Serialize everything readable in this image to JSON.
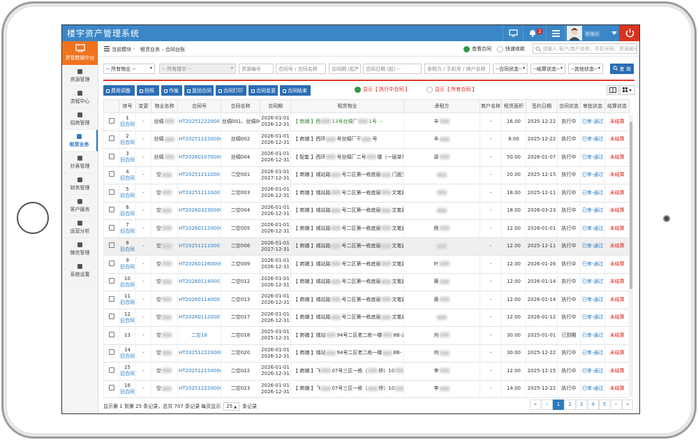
{
  "app": {
    "title": "楼宇资产管理系统",
    "notification_count": "2",
    "user": "管理员"
  },
  "sidebar": {
    "header": "资管数据中台",
    "items": [
      "资源管理",
      "流程中心",
      "招商管理",
      "租赁业务",
      "抄表管理",
      "财务管理",
      "客户服务",
      "运营分析",
      "微信管理",
      "系统设置"
    ]
  },
  "breadcrumb": {
    "label": "当前模块",
    "module": "租赁业务 – 合同台账"
  },
  "view_options": [
    "查看合同",
    "快速收款"
  ],
  "search_placeholder": "请输入 客户/商户名称、手机号码、资源编号",
  "filters": [
    "-- 所有物业 --",
    "-- 所有楼宇 --",
    "资源编号",
    "合同号 / 合同名称",
    "合同期 (起)",
    "合同日期 (起) --",
    "承租方 / 手机号 / 商户名称",
    "--合同状态--",
    "--结算状态--",
    "--其他状态--"
  ],
  "search_button": "查 询",
  "toolbar": [
    "费用调整",
    "拍照",
    "作废",
    "复回合同",
    "合同打印",
    "合同变更",
    "合同结束"
  ],
  "display_options": [
    "显示【 执行中合同 】",
    "显示【 所有合同 】"
  ],
  "table": {
    "columns": [
      "序号",
      "变更",
      "物业名称",
      "合同号",
      "合同名称",
      "合同期",
      "租赁物业",
      "承租方",
      "商户名称",
      "租赁面积",
      "签约日期",
      "合同状态",
      "审批状态",
      "结算状态"
    ],
    "rows": [
      {
        "no": "1",
        "tag": "旧合同",
        "change": "-",
        "property": [
          "丝绸"
        ],
        "contract_no": "HT2025122200010",
        "name": "丝绸001、丝绸003",
        "start": "2026-01-01",
        "end": "2026-12-31",
        "unit": [
          "【 商铺 】西",
          "13号丝绸厂",
          "1号 ···"
        ],
        "tenant": "丰",
        "merchant": "-",
        "area": "16.00",
        "signed": "2025-12-22",
        "status": "执行中",
        "approval": "已审-通过",
        "settlement": "未结算"
      },
      {
        "no": "2",
        "tag": "旧合同",
        "change": "-",
        "property": [
          "丝绸"
        ],
        "contract_no": "HT2025122200009",
        "name": "丝绸002",
        "start": "2026-01-01",
        "end": "2026-12-31",
        "unit": [
          "【 商铺 】西环",
          "号丝绸厂干",
          "号"
        ],
        "tenant": "丰",
        "merchant": "-",
        "area": "8.00",
        "signed": "2025-12-22",
        "status": "执行中",
        "approval": "已审-通过",
        "settlement": "未结算"
      },
      {
        "no": "3",
        "tag": "旧合同",
        "change": "-",
        "property": [
          "丝绸"
        ],
        "contract_no": "HT2026010700005",
        "name": "丝绸004",
        "start": "2026-01-01",
        "end": "2026-12-31",
        "unit": [
          "【 配套 】西环",
          "号丝绸厂二号",
          "楼（一层单车棚）"
        ],
        "tenant": "梁",
        "merchant": "-",
        "area": "50.00",
        "signed": "2026-01-07",
        "status": "执行中",
        "approval": "已审-通过",
        "settlement": "未结算"
      },
      {
        "no": "4",
        "tag": "旧合同",
        "change": "-",
        "property": [
          "空"
        ],
        "contract_no": "HT2025121100012",
        "name": "二空001",
        "start": "2026-01-01",
        "end": "2027-12-31",
        "unit": [
          "【 商铺 】城站路",
          "号二区第一栋底层",
          "门面文笔路16"
        ],
        "tenant": null,
        "merchant": "-",
        "area": "20.00",
        "signed": "2025-12-15",
        "status": "执行中",
        "approval": "已审-通过",
        "settlement": "未结算"
      },
      {
        "no": "5",
        "tag": "旧合同",
        "change": "-",
        "property": [
          "空"
        ],
        "contract_no": "HT2025121100014",
        "name": "二空003",
        "start": "2026-01-01",
        "end": "2026-12-31",
        "unit": [
          "【 商铺 】城站路",
          "号二区第一栋底层",
          "文笔路16"
        ],
        "tenant": null,
        "merchant": "-",
        "area": "18.00",
        "signed": "2025-12-11",
        "status": "执行中",
        "approval": "已审-通过",
        "settlement": "未结算"
      },
      {
        "no": "6",
        "tag": "旧合同",
        "change": "-",
        "property": [
          "空"
        ],
        "contract_no": "HT2026032300001",
        "name": "二空004",
        "start": "2026-01-01",
        "end": "2026-12-31",
        "unit": [
          "【 商铺 】城站路",
          "号二区第一栋底层",
          "文笔路16"
        ],
        "tenant": null,
        "merchant": "-",
        "area": "18.00",
        "signed": "2026-03-23",
        "status": "执行中",
        "approval": "已审-通过",
        "settlement": "未结算"
      },
      {
        "no": "7",
        "tag": "旧合同",
        "change": "-",
        "property": [
          "空"
        ],
        "contract_no": "HT2026011200009",
        "name": "二空005",
        "start": "2026-01-01",
        "end": "2026-12-31",
        "unit": [
          "【 商铺 】城站路",
          "号二区第一栋底层",
          "文笔路164"
        ],
        "tenant": "杨",
        "merchant": "-",
        "area": "12.00",
        "signed": "2026-01-01",
        "status": "执行中",
        "approval": "已审-通过",
        "settlement": "未结算"
      },
      {
        "no": "8",
        "tag": "旧合同",
        "change": "-",
        "property": [
          "空"
        ],
        "contract_no": "HT2025121100013",
        "name": "二空006",
        "start": "2026-01-01",
        "end": "2027-12-31",
        "unit": [
          "【 商铺 】城站路",
          "号二区第一栋底层",
          "文笔路164-"
        ],
        "tenant": null,
        "merchant": "-",
        "area": "12.00",
        "signed": "2025-12-11",
        "status": "执行中",
        "approval": "已审-通过",
        "settlement": "未结算"
      },
      {
        "no": "9",
        "tag": "旧合同",
        "change": "-",
        "property": [
          "空"
        ],
        "contract_no": "HT2026012600003",
        "name": "二空009",
        "start": "2026-01-01",
        "end": "2026-12-31",
        "unit": [
          "【 商铺 】城站路",
          "号二区第一栋底层",
          "文笔路164-"
        ],
        "tenant": "叶",
        "merchant": "-",
        "area": "12.00",
        "signed": "2026-01-26",
        "status": "执行中",
        "approval": "已审-通过",
        "settlement": "未结算"
      },
      {
        "no": "10",
        "tag": "旧合同",
        "change": "-",
        "property": [
          "空"
        ],
        "contract_no": "HT2026011400010",
        "name": "二空012",
        "start": "2026-01-01",
        "end": "2026-12-31",
        "unit": [
          "【 商铺 】城站路",
          "号二区第一栋底层",
          "文笔路164-"
        ],
        "tenant": "黄",
        "merchant": "-",
        "area": "12.00",
        "signed": "2026-01-14",
        "status": "执行中",
        "approval": "已审-通过",
        "settlement": "未结算"
      },
      {
        "no": "11",
        "tag": "旧合同",
        "change": "-",
        "property": [
          "空"
        ],
        "contract_no": "HT2026011400011",
        "name": "二空013",
        "start": "2026-01-01",
        "end": "2026-12-31",
        "unit": [
          "【 商铺 】城站路",
          "号二区第一栋底层",
          "文笔路164-"
        ],
        "tenant": "黄",
        "merchant": "-",
        "area": "12.00",
        "signed": "2026-01-14",
        "status": "执行中",
        "approval": "已审-通过",
        "settlement": "未结算"
      },
      {
        "no": "12",
        "tag": "旧合同",
        "change": "-",
        "property": [
          "空"
        ],
        "contract_no": "HT2026011200010",
        "name": "二空017",
        "start": "2026-01-01",
        "end": "2026-12-31",
        "unit": [
          "【 商铺 】城站路",
          "号二区第一栋底层",
          "文笔路164-"
        ],
        "tenant": null,
        "merchant": "-",
        "area": "12.00",
        "signed": "2026-01-12",
        "status": "执行中",
        "approval": "已审-通过",
        "settlement": "未结算"
      },
      {
        "no": "13",
        "change": "-",
        "property": [
          "空"
        ],
        "contract_no": "二空18",
        "name": "二空018",
        "start": "2025-01-01",
        "end": "2025-12-31",
        "unit": [
          "【 商铺 】城站",
          "94号二区老二栋一楼",
          "8B-24"
        ],
        "tenant": "何",
        "merchant": "-",
        "area": "30.00",
        "signed": "2025-01-01",
        "status": "已到期",
        "approval": "已审-通过",
        "settlement": "未结算"
      },
      {
        "no": "14",
        "tag": "旧合同",
        "change": "-",
        "property": [
          "空"
        ],
        "contract_no": "HT2025122200003",
        "name": "二空020",
        "start": "2026-01-01",
        "end": "2026-12-31",
        "unit": [
          "【 商铺 】城站",
          "94号二区老二栋一楼",
          "8B-"
        ],
        "tenant": "何",
        "merchant": "-",
        "area": "30.00",
        "signed": "2025-12-22",
        "status": "执行中",
        "approval": "已审-通过",
        "settlement": "未结算"
      },
      {
        "no": "15",
        "tag": "旧合同",
        "change": "-",
        "property": [
          "空"
        ],
        "contract_no": "HT2025121500001",
        "name": "二空022",
        "start": "2026-01-01",
        "end": "2026-12-31",
        "unit": [
          "【 商铺 】飞",
          "07号三区一栋（",
          "桥）10",
          "号"
        ],
        "tenant": "李",
        "merchant": "-",
        "area": "12.00",
        "signed": "2025-12-15",
        "status": "执行中",
        "approval": "已审-通过",
        "settlement": "未结算"
      },
      {
        "no": "16",
        "tag": "旧合同",
        "change": "-",
        "property": [
          "空"
        ],
        "contract_no": "HT2025122200001",
        "name": "二空023",
        "start": "2026-01-01",
        "end": "2026-12-31",
        "unit": [
          "【 商铺 】飞",
          "07号三区一栋（",
          "桥）10",
          "号"
        ],
        "tenant": "李",
        "merchant": "-",
        "area": "14.00",
        "signed": "2025-12-22",
        "status": "执行中",
        "approval": "已审-通过",
        "settlement": "未结算"
      }
    ]
  },
  "footer": {
    "summary": "显示第 1 到第 25 条记录，总共 707 条记录 每页显示",
    "page_size": "25",
    "summary_after": "条记录",
    "pages": [
      "«",
      "‹",
      "1",
      "2",
      "3",
      "4",
      "5",
      "›",
      "»"
    ]
  }
}
